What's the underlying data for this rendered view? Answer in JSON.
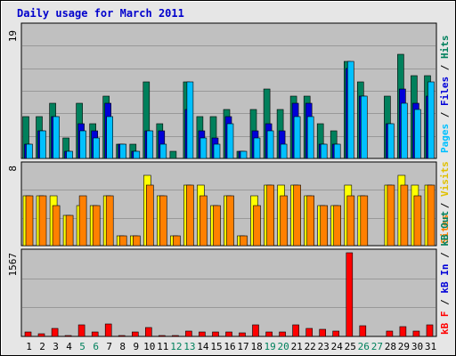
{
  "title": "Daily usage for March 2011",
  "colors": {
    "frame_bg": "#e6e6e6",
    "panel_bg": "#c0c0c0",
    "title": "#0000cc",
    "hits": "#00805c",
    "files": "#0000d8",
    "pages": "#00c0ff",
    "visits": "#ffff00",
    "sites": "#ff8000",
    "kbin": "#0000d8",
    "kbout": "#00805c",
    "kbf": "#ff0000",
    "weekday": "#000000",
    "weekend": "#00805c"
  },
  "chart_data": [
    {
      "type": "bar",
      "panel": "hits-files-pages",
      "y_max_label": "19",
      "ylim": [
        0,
        19
      ],
      "legend": {
        "pages": "Pages",
        "sep1": " / ",
        "files": "Files",
        "sep2": " / ",
        "hits": "Hits"
      },
      "series": [
        {
          "name": "Hits",
          "values": [
            6,
            6,
            8,
            3,
            8,
            5,
            9,
            2,
            2,
            11,
            5,
            1,
            11,
            6,
            6,
            7,
            1,
            7,
            10,
            7,
            9,
            9,
            5,
            4,
            14,
            11,
            0,
            9,
            15,
            12,
            12
          ]
        },
        {
          "name": "Files",
          "values": [
            2,
            4,
            6,
            1,
            5,
            4,
            8,
            2,
            1,
            4,
            4,
            0,
            7,
            4,
            3,
            6,
            1,
            4,
            5,
            4,
            8,
            8,
            2,
            2,
            13,
            9,
            0,
            5,
            10,
            8,
            9
          ]
        },
        {
          "name": "Pages",
          "values": [
            2,
            4,
            6,
            1,
            4,
            3,
            6,
            2,
            1,
            4,
            2,
            0,
            11,
            3,
            2,
            5,
            1,
            3,
            4,
            2,
            6,
            6,
            2,
            2,
            14,
            9,
            0,
            5,
            8,
            7,
            11
          ]
        }
      ]
    },
    {
      "type": "bar",
      "panel": "visits-sites",
      "y_max_label": "8",
      "ylim": [
        0,
        8
      ],
      "legend": {
        "sites": "Sites",
        "sep1": " / ",
        "visits": "Visits"
      },
      "series": [
        {
          "name": "Visits",
          "values": [
            5,
            5,
            5,
            3,
            4,
            4,
            5,
            1,
            1,
            7,
            5,
            1,
            6,
            6,
            4,
            5,
            1,
            5,
            6,
            6,
            6,
            5,
            4,
            4,
            6,
            5,
            0,
            6,
            7,
            6,
            6
          ]
        },
        {
          "name": "Sites",
          "values": [
            5,
            5,
            4,
            3,
            5,
            4,
            5,
            1,
            1,
            6,
            5,
            1,
            6,
            5,
            4,
            5,
            1,
            4,
            6,
            5,
            6,
            5,
            4,
            4,
            5,
            5,
            0,
            6,
            6,
            5,
            6
          ]
        }
      ]
    },
    {
      "type": "bar",
      "panel": "kbytes",
      "y_max_label": "1567",
      "ylim": [
        0,
        1567
      ],
      "legend": {
        "kbf": "kB F",
        "sep1": " / ",
        "kbin": "kB In",
        "sep2": " / ",
        "kbout": "kB Out"
      },
      "series": [
        {
          "name": "kB F",
          "values": [
            80,
            50,
            150,
            15,
            210,
            80,
            240,
            20,
            80,
            170,
            20,
            20,
            100,
            80,
            90,
            90,
            70,
            210,
            90,
            80,
            210,
            150,
            130,
            100,
            1567,
            200,
            0,
            100,
            190,
            100,
            210
          ]
        }
      ]
    }
  ],
  "x_axis": {
    "labels": [
      "1",
      "2",
      "3",
      "4",
      "5",
      "6",
      "7",
      "8",
      "9",
      "10",
      "11",
      "12",
      "13",
      "14",
      "15",
      "16",
      "17",
      "18",
      "19",
      "20",
      "21",
      "22",
      "23",
      "24",
      "25",
      "26",
      "27",
      "28",
      "29",
      "30",
      "31"
    ],
    "weekend": [
      5,
      6,
      12,
      13,
      19,
      20,
      26,
      27
    ]
  }
}
